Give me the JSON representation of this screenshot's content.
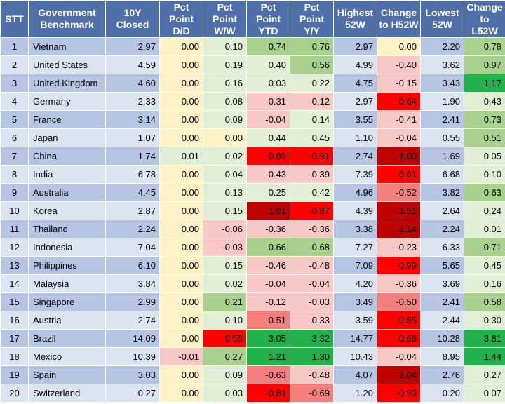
{
  "headers": [
    "STT",
    "Government Benchmark",
    "10Y Closed",
    "Pct Point D/D",
    "Pct Point W/W",
    "Pct Point YTD",
    "Pct Point Y/Y",
    "Highest 52W",
    "Change to H52W",
    "Lowest 52W",
    "Change to L52W"
  ],
  "rows": [
    [
      "1",
      "Vietnam",
      "2.97",
      "0.00",
      "0.10",
      "0.74",
      "0.76",
      "2.97",
      "0.00",
      "2.20",
      "0.78"
    ],
    [
      "2",
      "United States",
      "4.59",
      "0.00",
      "0.19",
      "0.40",
      "0.56",
      "4.99",
      "-0.40",
      "3.62",
      "0.97"
    ],
    [
      "3",
      "United Kingdom",
      "4.60",
      "0.00",
      "0.16",
      "0.03",
      "0.22",
      "4.75",
      "-0.15",
      "3.43",
      "1.17"
    ],
    [
      "4",
      "Germany",
      "2.33",
      "0.00",
      "0.08",
      "-0.31",
      "-0.12",
      "2.97",
      "-0.64",
      "1.90",
      "0.43"
    ],
    [
      "5",
      "France",
      "3.14",
      "0.00",
      "0.09",
      "-0.04",
      "0.14",
      "3.55",
      "-0.41",
      "2.41",
      "0.73"
    ],
    [
      "6",
      "Japan",
      "1.07",
      "0.00",
      "0.00",
      "0.44",
      "0.45",
      "1.10",
      "-0.04",
      "0.55",
      "0.51"
    ],
    [
      "7",
      "China",
      "1.74",
      "0.01",
      "0.02",
      "-0.89",
      "-0.91",
      "2.74",
      "-1.00",
      "1.69",
      "0.05"
    ],
    [
      "8",
      "India",
      "6.78",
      "0.00",
      "0.04",
      "-0.43",
      "-0.39",
      "7.39",
      "-0.61",
      "6.68",
      "0.10"
    ],
    [
      "9",
      "Australia",
      "4.45",
      "0.00",
      "0.13",
      "0.25",
      "0.42",
      "4.96",
      "-0.52",
      "3.82",
      "0.63"
    ],
    [
      "10",
      "Korea",
      "2.87",
      "0.00",
      "0.15",
      "-1.01",
      "-0.87",
      "4.39",
      "-1.51",
      "2.64",
      "0.24"
    ],
    [
      "11",
      "Thailand",
      "2.24",
      "0.00",
      "-0.06",
      "-0.36",
      "-0.36",
      "3.38",
      "-1.14",
      "2.24",
      "0.01"
    ],
    [
      "12",
      "Indonesia",
      "7.04",
      "0.00",
      "-0.03",
      "0.66",
      "0.68",
      "7.27",
      "-0.23",
      "6.33",
      "0.71"
    ],
    [
      "13",
      "Philippines",
      "6.10",
      "0.00",
      "0.15",
      "-0.46",
      "-0.48",
      "7.09",
      "-0.99",
      "5.65",
      "0.45"
    ],
    [
      "14",
      "Malaysia",
      "3.84",
      "0.00",
      "0.02",
      "-0.04",
      "-0.04",
      "4.20",
      "-0.36",
      "3.69",
      "0.16"
    ],
    [
      "15",
      "Singapore",
      "2.99",
      "0.00",
      "0.21",
      "-0.12",
      "-0.03",
      "3.49",
      "-0.50",
      "2.41",
      "0.58"
    ],
    [
      "16",
      "Austria",
      "2.74",
      "0.00",
      "0.10",
      "-0.51",
      "-0.33",
      "3.59",
      "-0.85",
      "2.44",
      "0.30"
    ],
    [
      "17",
      "Brazil",
      "14.09",
      "0.00",
      "-0.55",
      "3.05",
      "3.32",
      "14.77",
      "-0.68",
      "10.28",
      "3.81"
    ],
    [
      "18",
      "Mexico",
      "10.39",
      "-0.01",
      "0.27",
      "1.21",
      "1.30",
      "10.43",
      "-0.04",
      "8.95",
      "1.44"
    ],
    [
      "19",
      "Spain",
      "3.03",
      "0.00",
      "0.09",
      "-0.63",
      "-0.48",
      "4.07",
      "-1.04",
      "2.76",
      "0.27"
    ],
    [
      "20",
      "Switzerland",
      "0.27",
      "0.00",
      "0.03",
      "-0.81",
      "-0.69",
      "1.20",
      "-0.93",
      "0.20",
      "0.07"
    ]
  ],
  "colors": {
    "header_bg": "#4f6fa8",
    "row_odd": "#b5c5e3",
    "row_even": "#dbe5f2",
    "neutral": "#fdf2c8",
    "pos_light": "#e0efd6",
    "pos_mid": "#a9d18e",
    "pos_strong": "#21b24b",
    "neg_light": "#f8c8c6",
    "neg_mid": "#f47f7c",
    "neg_strong": "#ff0000",
    "neg_dark": "#c00000"
  }
}
